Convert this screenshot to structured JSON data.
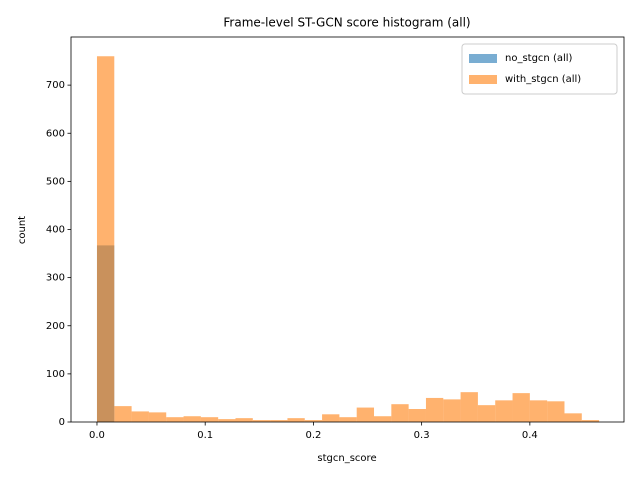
{
  "chart_data": {
    "type": "histogram",
    "title": "Frame-level ST-GCN score histogram (all)",
    "xlabel": "stgcn_score",
    "ylabel": "count",
    "bins": [
      0,
      0.016,
      0.032,
      0.048,
      0.064,
      0.08,
      0.096,
      0.112,
      0.128,
      0.144,
      0.16,
      0.176,
      0.192,
      0.208,
      0.224,
      0.24,
      0.256,
      0.272,
      0.288,
      0.304,
      0.32,
      0.336,
      0.352,
      0.368,
      0.384,
      0.4,
      0.416,
      0.432,
      0.448,
      0.464
    ],
    "series": [
      {
        "name": "no_stgcn (all)",
        "color": "#1f77b4",
        "values": [
          367,
          0,
          0,
          0,
          0,
          0,
          0,
          0,
          0,
          0,
          0,
          0,
          0,
          0,
          0,
          0,
          0,
          0,
          0,
          0,
          0,
          0,
          0,
          0,
          0,
          0,
          0,
          0,
          0
        ]
      },
      {
        "name": "with_stgcn (all)",
        "color": "#ff7f0e",
        "values": [
          760,
          33,
          22,
          20,
          10,
          12,
          10,
          6,
          8,
          4,
          4,
          8,
          4,
          16,
          10,
          30,
          12,
          37,
          27,
          50,
          47,
          62,
          35,
          45,
          60,
          45,
          43,
          18,
          4
        ]
      }
    ],
    "alpha": 0.6,
    "xlim": [
      -0.024,
      0.487
    ],
    "ylim": [
      0,
      800
    ],
    "xticks": [
      {
        "value": 0,
        "label": "0.0"
      },
      0.1,
      0.2,
      0.3,
      0.4
    ],
    "yticks": [
      0,
      100,
      200,
      300,
      400,
      500,
      600,
      700
    ],
    "legend": "upper right"
  }
}
